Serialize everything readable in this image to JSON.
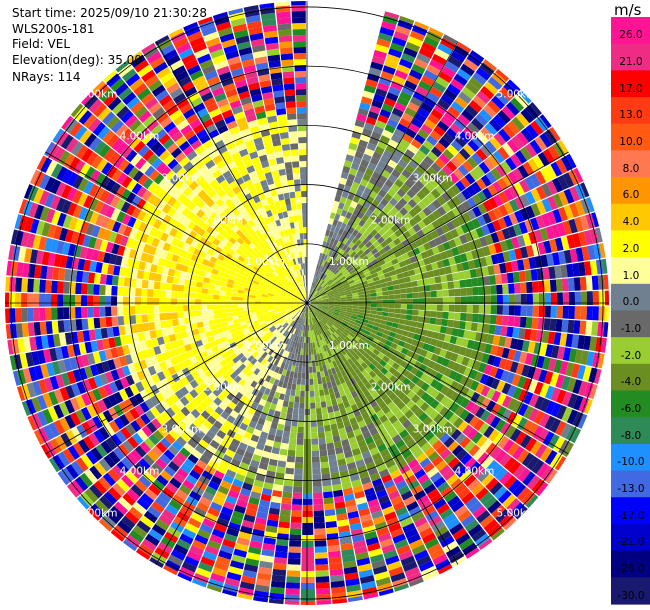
{
  "header": {
    "start_time": "Start time: 2025/09/10 21:30:28",
    "site": "WLS200s-181",
    "field": "Field: VEL",
    "elevation": "Elevation(deg): 35.00",
    "nrays": "NRays: 114"
  },
  "colorbar": {
    "unit": "m/s",
    "labels": [
      "26.0",
      "21.0",
      "17.0",
      "13.0",
      "10.0",
      "8.0",
      "6.0",
      "4.0",
      "2.0",
      "1.0",
      "0.0",
      "-1.0",
      "-2.0",
      "-4.0",
      "-6.0",
      "-8.0",
      "-10.0",
      "-13.0",
      "-17.0",
      "-21.0",
      "-26.0",
      "-30.0"
    ],
    "colors": [
      "#ff1493",
      "#ee2c86",
      "#ff0000",
      "#ff3b14",
      "#ff5a14",
      "#ff7850",
      "#ff9600",
      "#ffc800",
      "#ffff00",
      "#ffff99",
      "#708090",
      "#696969",
      "#9acd32",
      "#6b8e23",
      "#228b22",
      "#2e8b57",
      "#1e90ff",
      "#4169e1",
      "#0000ff",
      "#0000cd",
      "#000080",
      "#191970"
    ]
  },
  "chart_data": {
    "type": "ppi",
    "field": "VEL",
    "unit": "m/s",
    "range_rings_km": [
      1.0,
      2.0,
      3.0,
      4.0,
      5.0
    ],
    "ring_labels": [
      "1.00km",
      "2.00km",
      "3.00km",
      "4.00km",
      "5.00km"
    ],
    "nrays": 114,
    "elevation_deg": 35.0,
    "gap_azimuth_deg": [
      0,
      15
    ],
    "color_levels": [
      -30.0,
      -26.0,
      -21.0,
      -17.0,
      -13.0,
      -10.0,
      -8.0,
      -6.0,
      -4.0,
      -2.0,
      -1.0,
      0.0,
      1.0,
      2.0,
      4.0,
      6.0,
      8.0,
      10.0,
      13.0,
      17.0,
      21.0,
      26.0
    ]
  }
}
